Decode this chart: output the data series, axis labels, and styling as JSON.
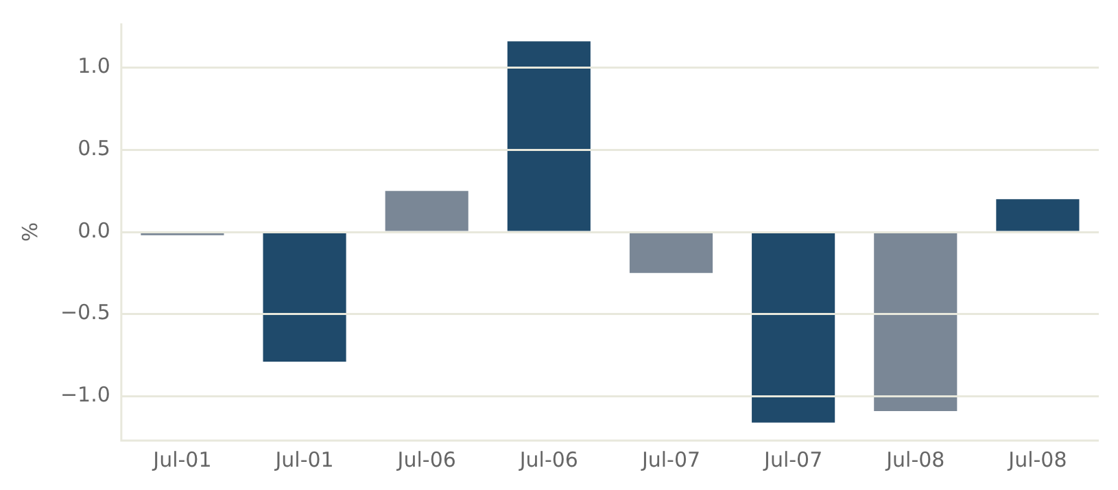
{
  "chart_data": {
    "type": "bar",
    "ylabel": "%",
    "categories": [
      "Jul-01",
      "Jul-01",
      "Jul-06",
      "Jul-06",
      "Jul-07",
      "Jul-07",
      "Jul-08",
      "Jul-08"
    ],
    "values": [
      -0.02,
      -0.79,
      0.25,
      1.16,
      -0.25,
      -1.16,
      -1.09,
      0.2
    ],
    "colors": [
      "#7a8796",
      "#1f4a6b",
      "#7a8796",
      "#1f4a6b",
      "#7a8796",
      "#1f4a6b",
      "#7a8796",
      "#1f4a6b"
    ],
    "ylim": [
      -1.27,
      1.27
    ],
    "yticks": [
      {
        "value": -1,
        "label": "−1.0"
      },
      {
        "value": -0.5,
        "label": "−0.5"
      },
      {
        "value": 0,
        "label": "0.0"
      },
      {
        "value": 0.5,
        "label": "0.5"
      },
      {
        "value": 1,
        "label": "1.0"
      }
    ],
    "grid": "y"
  }
}
